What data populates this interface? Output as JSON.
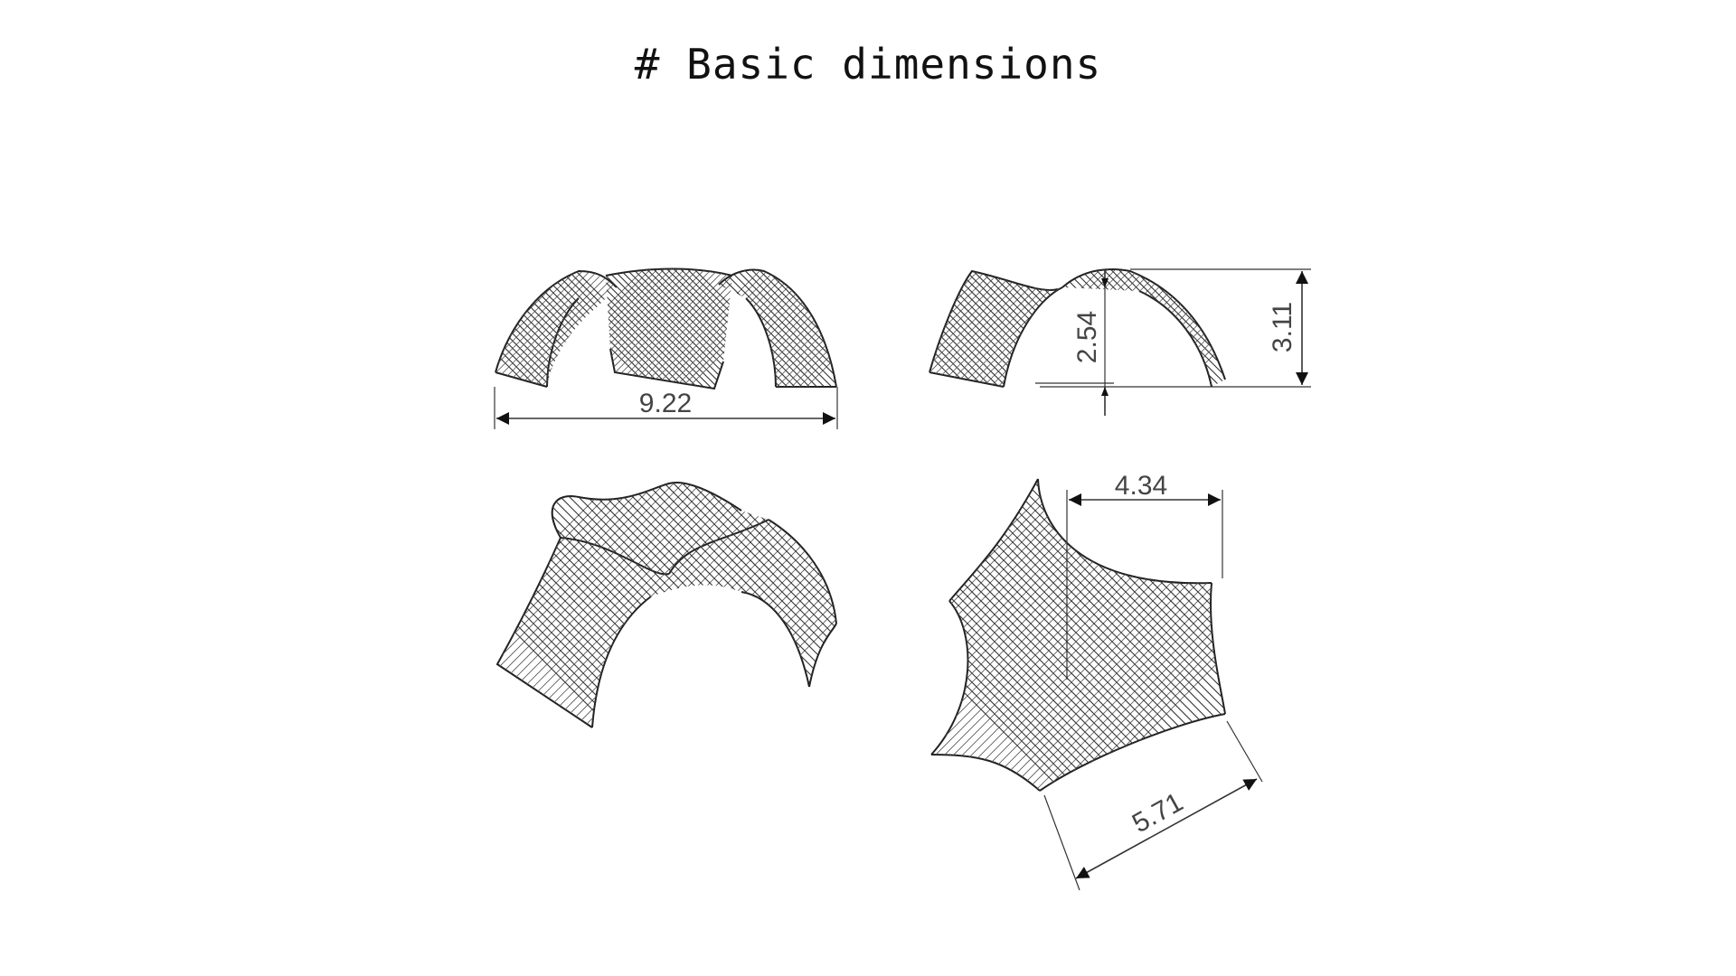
{
  "title": "# Basic dimensions",
  "dimensions": {
    "front_width": "9.22",
    "side_inner_height": "2.54",
    "side_total_height": "3.11",
    "plan_edge_top": "4.34",
    "plan_edge_diagonal": "5.71"
  }
}
